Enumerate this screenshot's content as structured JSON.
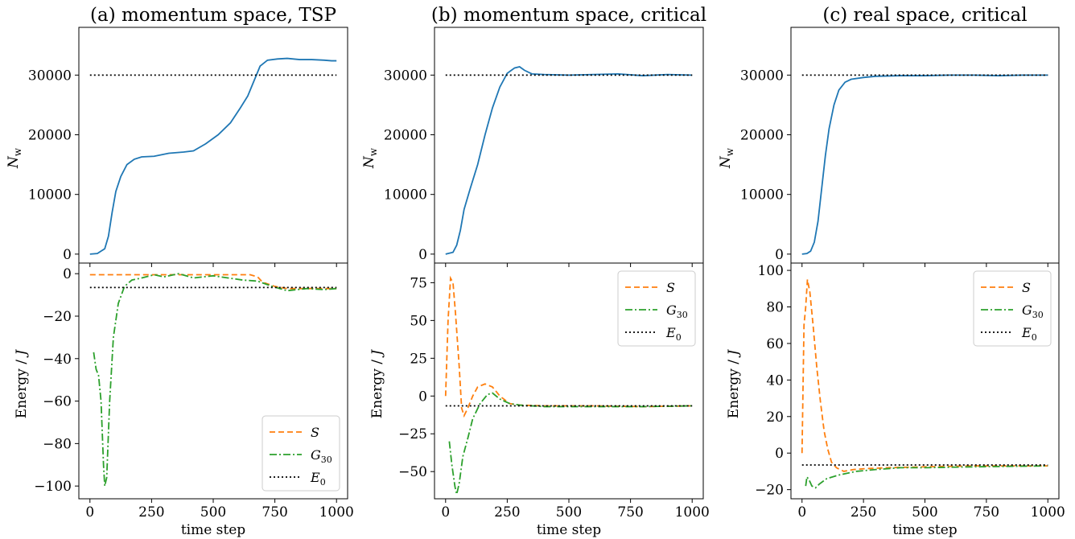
{
  "figure": {
    "x_label": "time step",
    "colors": {
      "S": "#ff7f0e",
      "G30": "#2ca02c",
      "E0": "#000000",
      "Nw": "#1f77b4"
    }
  },
  "chart_data": [
    {
      "type": "line",
      "title": "(a) momentum space, TSP",
      "top": {
        "ylabel": "N_w",
        "ylim": [
          -1500,
          38000
        ],
        "yticks": [
          0,
          10000,
          20000,
          30000
        ],
        "series": [
          {
            "kind": "walkers",
            "points": [
              [
                0,
                0
              ],
              [
                30,
                100
              ],
              [
                60,
                900
              ],
              [
                75,
                3000
              ],
              [
                90,
                7000
              ],
              [
                105,
                10500
              ],
              [
                125,
                13000
              ],
              [
                150,
                15000
              ],
              [
                180,
                15900
              ],
              [
                210,
                16300
              ],
              [
                260,
                16400
              ],
              [
                320,
                16900
              ],
              [
                380,
                17100
              ],
              [
                420,
                17300
              ],
              [
                470,
                18500
              ],
              [
                520,
                20000
              ],
              [
                570,
                22000
              ],
              [
                610,
                24500
              ],
              [
                640,
                26500
              ],
              [
                660,
                28500
              ],
              [
                690,
                31500
              ],
              [
                720,
                32500
              ],
              [
                760,
                32700
              ],
              [
                800,
                32800
              ],
              [
                850,
                32600
              ],
              [
                900,
                32600
              ],
              [
                950,
                32500
              ],
              [
                980,
                32400
              ],
              [
                1000,
                32400
              ]
            ]
          },
          {
            "kind": "E0",
            "points": [
              [
                0,
                30000
              ],
              [
                1000,
                30000
              ]
            ]
          }
        ]
      },
      "bottom": {
        "ylabel": "Energy / J",
        "ylim": [
          -106,
          5
        ],
        "yticks": [
          -100,
          -80,
          -60,
          -40,
          -20,
          0
        ],
        "series": [
          {
            "name": "S",
            "kind": "S",
            "points": [
              [
                0,
                -0.5
              ],
              [
                200,
                -0.5
              ],
              [
                400,
                -0.5
              ],
              [
                650,
                -0.5
              ],
              [
                680,
                -1.5
              ],
              [
                700,
                -4
              ],
              [
                750,
                -6
              ],
              [
                800,
                -7
              ],
              [
                900,
                -7
              ],
              [
                1000,
                -7
              ]
            ]
          },
          {
            "name": "G30",
            "kind": "G30",
            "points": [
              [
                15,
                -37
              ],
              [
                25,
                -45
              ],
              [
                35,
                -48
              ],
              [
                45,
                -60
              ],
              [
                55,
                -90
              ],
              [
                60,
                -100
              ],
              [
                68,
                -96
              ],
              [
                80,
                -60
              ],
              [
                95,
                -30
              ],
              [
                115,
                -14
              ],
              [
                140,
                -6
              ],
              [
                170,
                -3
              ],
              [
                210,
                -2
              ],
              [
                260,
                -0.5
              ],
              [
                300,
                -1.5
              ],
              [
                360,
                0
              ],
              [
                420,
                -2
              ],
              [
                500,
                -1
              ],
              [
                560,
                -2
              ],
              [
                620,
                -3
              ],
              [
                680,
                -3.5
              ],
              [
                740,
                -6
              ],
              [
                800,
                -8
              ],
              [
                880,
                -7
              ],
              [
                950,
                -7.5
              ],
              [
                1000,
                -7
              ]
            ]
          },
          {
            "name": "E0",
            "kind": "E0",
            "points": [
              [
                0,
                -6.5
              ],
              [
                1000,
                -6.5
              ]
            ]
          }
        ],
        "legend": {
          "position": "lower-right",
          "labels": [
            "S",
            "G30",
            "E0"
          ]
        }
      },
      "xlim": [
        -45,
        1045
      ],
      "xticks": [
        0,
        250,
        500,
        750,
        1000
      ]
    },
    {
      "type": "line",
      "title": "(b) momentum space, critical",
      "top": {
        "ylabel": "N_w",
        "ylim": [
          -1500,
          38000
        ],
        "yticks": [
          0,
          10000,
          20000,
          30000
        ],
        "series": [
          {
            "kind": "walkers",
            "points": [
              [
                0,
                0
              ],
              [
                30,
                300
              ],
              [
                45,
                1500
              ],
              [
                60,
                4000
              ],
              [
                75,
                7500
              ],
              [
                100,
                11000
              ],
              [
                130,
                15000
              ],
              [
                160,
                20000
              ],
              [
                190,
                24500
              ],
              [
                220,
                28000
              ],
              [
                250,
                30300
              ],
              [
                280,
                31200
              ],
              [
                300,
                31400
              ],
              [
                320,
                30800
              ],
              [
                350,
                30200
              ],
              [
                400,
                30100
              ],
              [
                500,
                30000
              ],
              [
                600,
                30100
              ],
              [
                700,
                30200
              ],
              [
                800,
                29900
              ],
              [
                900,
                30100
              ],
              [
                1000,
                30000
              ]
            ]
          },
          {
            "kind": "E0",
            "points": [
              [
                0,
                30000
              ],
              [
                1000,
                30000
              ]
            ]
          }
        ]
      },
      "bottom": {
        "ylabel": "Energy / J",
        "ylim": [
          -68,
          88
        ],
        "yticks": [
          -50,
          -25,
          0,
          25,
          50,
          75
        ],
        "series": [
          {
            "name": "S",
            "kind": "S",
            "points": [
              [
                0,
                0
              ],
              [
                10,
                50
              ],
              [
                20,
                78
              ],
              [
                30,
                75
              ],
              [
                40,
                55
              ],
              [
                55,
                20
              ],
              [
                65,
                -8
              ],
              [
                75,
                -13
              ],
              [
                90,
                -8
              ],
              [
                110,
                0
              ],
              [
                130,
                6
              ],
              [
                160,
                8
              ],
              [
                190,
                6
              ],
              [
                220,
                0
              ],
              [
                260,
                -5
              ],
              [
                300,
                -6
              ],
              [
                400,
                -6.5
              ],
              [
                500,
                -6.5
              ],
              [
                600,
                -6.5
              ],
              [
                800,
                -7
              ],
              [
                1000,
                -6.5
              ]
            ]
          },
          {
            "name": "G30",
            "kind": "G30",
            "points": [
              [
                15,
                -30
              ],
              [
                25,
                -45
              ],
              [
                38,
                -60
              ],
              [
                45,
                -65
              ],
              [
                55,
                -58
              ],
              [
                70,
                -40
              ],
              [
                90,
                -28
              ],
              [
                110,
                -15
              ],
              [
                140,
                -5
              ],
              [
                170,
                1
              ],
              [
                190,
                2
              ],
              [
                220,
                -2
              ],
              [
                260,
                -5
              ],
              [
                300,
                -6
              ],
              [
                400,
                -7
              ],
              [
                500,
                -7
              ],
              [
                600,
                -7
              ],
              [
                800,
                -7
              ],
              [
                1000,
                -6.5
              ]
            ]
          },
          {
            "name": "E0",
            "kind": "E0",
            "points": [
              [
                0,
                -6.5
              ],
              [
                1000,
                -6.5
              ]
            ]
          }
        ],
        "legend": {
          "position": "upper-right",
          "labels": [
            "S",
            "G30",
            "E0"
          ]
        }
      },
      "xlim": [
        -45,
        1045
      ],
      "xticks": [
        0,
        250,
        500,
        750,
        1000
      ]
    },
    {
      "type": "line",
      "title": "(c) real space, critical",
      "top": {
        "ylabel": "N_w",
        "ylim": [
          -1500,
          38000
        ],
        "yticks": [
          0,
          10000,
          20000,
          30000
        ],
        "series": [
          {
            "kind": "walkers",
            "points": [
              [
                0,
                0
              ],
              [
                20,
                100
              ],
              [
                35,
                500
              ],
              [
                50,
                2000
              ],
              [
                65,
                5500
              ],
              [
                80,
                11000
              ],
              [
                95,
                16500
              ],
              [
                110,
                21000
              ],
              [
                130,
                25000
              ],
              [
                150,
                27500
              ],
              [
                175,
                28800
              ],
              [
                200,
                29300
              ],
              [
                250,
                29600
              ],
              [
                300,
                29800
              ],
              [
                400,
                29900
              ],
              [
                500,
                29900
              ],
              [
                600,
                30000
              ],
              [
                700,
                30000
              ],
              [
                800,
                29900
              ],
              [
                900,
                30000
              ],
              [
                1000,
                30000
              ]
            ]
          },
          {
            "kind": "E0",
            "points": [
              [
                0,
                30000
              ],
              [
                1000,
                30000
              ]
            ]
          }
        ]
      },
      "bottom": {
        "ylabel": "Energy / J",
        "ylim": [
          -25,
          104
        ],
        "yticks": [
          -20,
          0,
          20,
          40,
          60,
          80,
          100
        ],
        "series": [
          {
            "name": "S",
            "kind": "S",
            "points": [
              [
                0,
                0
              ],
              [
                8,
                70
              ],
              [
                15,
                80
              ],
              [
                22,
                95
              ],
              [
                32,
                88
              ],
              [
                45,
                70
              ],
              [
                60,
                47
              ],
              [
                75,
                28
              ],
              [
                90,
                12
              ],
              [
                105,
                2
              ],
              [
                120,
                -5
              ],
              [
                140,
                -8
              ],
              [
                170,
                -10
              ],
              [
                210,
                -9
              ],
              [
                260,
                -8.5
              ],
              [
                350,
                -8
              ],
              [
                500,
                -7.5
              ],
              [
                700,
                -7
              ],
              [
                1000,
                -7
              ]
            ]
          },
          {
            "name": "G30",
            "kind": "G30",
            "points": [
              [
                15,
                -18
              ],
              [
                20,
                -13
              ],
              [
                30,
                -15
              ],
              [
                40,
                -18
              ],
              [
                55,
                -19
              ],
              [
                70,
                -17
              ],
              [
                100,
                -14
              ],
              [
                150,
                -12
              ],
              [
                220,
                -10
              ],
              [
                300,
                -9
              ],
              [
                400,
                -8
              ],
              [
                500,
                -8
              ],
              [
                700,
                -7.5
              ],
              [
                1000,
                -7
              ]
            ]
          },
          {
            "name": "E0",
            "kind": "E0",
            "points": [
              [
                0,
                -6.5
              ],
              [
                1000,
                -6.5
              ]
            ]
          }
        ],
        "legend": {
          "position": "upper-right",
          "labels": [
            "S",
            "G30",
            "E0"
          ]
        }
      },
      "xlim": [
        -45,
        1045
      ],
      "xticks": [
        0,
        250,
        500,
        750,
        1000
      ]
    }
  ]
}
